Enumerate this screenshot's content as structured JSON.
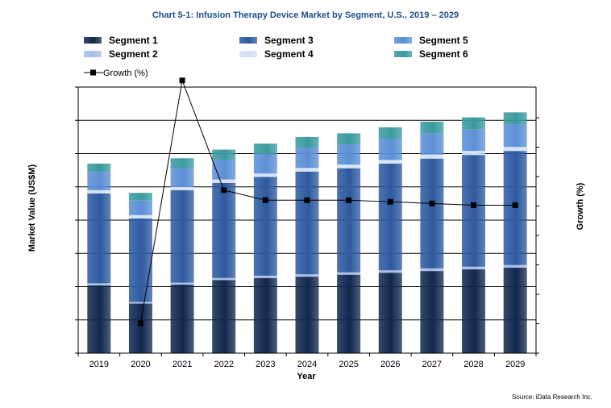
{
  "chart_data": {
    "type": "bar",
    "title": "Chart 5-1: Infusion Therapy Device Market by Segment, U.S., 2019 – 2029",
    "xlabel": "Year",
    "ylabel": "Market Value (US$M)",
    "y2label": "Growth (%)",
    "source": "Source: iData Research Inc.",
    "categories": [
      "2019",
      "2020",
      "2021",
      "2022",
      "2023",
      "2024",
      "2025",
      "2026",
      "2027",
      "2028",
      "2029"
    ],
    "ylim": [
      0,
      8
    ],
    "y2lim": [
      0,
      8
    ],
    "stacked": true,
    "grid": "horizontal",
    "legend_position": "top",
    "series": [
      {
        "name": "Segment 1",
        "color": "#12284f",
        "values": [
          2.04,
          1.49,
          2.06,
          2.2,
          2.26,
          2.3,
          2.36,
          2.42,
          2.47,
          2.52,
          2.57
        ]
      },
      {
        "name": "Segment 2",
        "color": "#a6bde6",
        "values": [
          0.06,
          0.05,
          0.06,
          0.06,
          0.07,
          0.07,
          0.07,
          0.07,
          0.08,
          0.08,
          0.08
        ]
      },
      {
        "name": "Segment 3",
        "color": "#2d5aa0",
        "values": [
          2.7,
          2.51,
          2.78,
          2.86,
          2.97,
          3.09,
          3.13,
          3.21,
          3.3,
          3.36,
          3.43
        ]
      },
      {
        "name": "Segment 4",
        "color": "#d4e2f4",
        "values": [
          0.1,
          0.1,
          0.1,
          0.1,
          0.1,
          0.11,
          0.11,
          0.11,
          0.12,
          0.12,
          0.12
        ]
      },
      {
        "name": "Segment 5",
        "color": "#5b8fd6",
        "values": [
          0.55,
          0.45,
          0.56,
          0.6,
          0.6,
          0.61,
          0.61,
          0.63,
          0.64,
          0.65,
          0.67
        ]
      },
      {
        "name": "Segment 6",
        "color": "#3a9a9f",
        "values": [
          0.25,
          0.22,
          0.3,
          0.3,
          0.3,
          0.32,
          0.33,
          0.35,
          0.35,
          0.36,
          0.37
        ]
      }
    ],
    "line_series": {
      "name": "Growth (%)",
      "axis": "right",
      "color": "#000000",
      "values": [
        null,
        0.9,
        8.2,
        4.9,
        4.6,
        4.6,
        4.6,
        4.55,
        4.5,
        4.45,
        4.45
      ]
    }
  }
}
